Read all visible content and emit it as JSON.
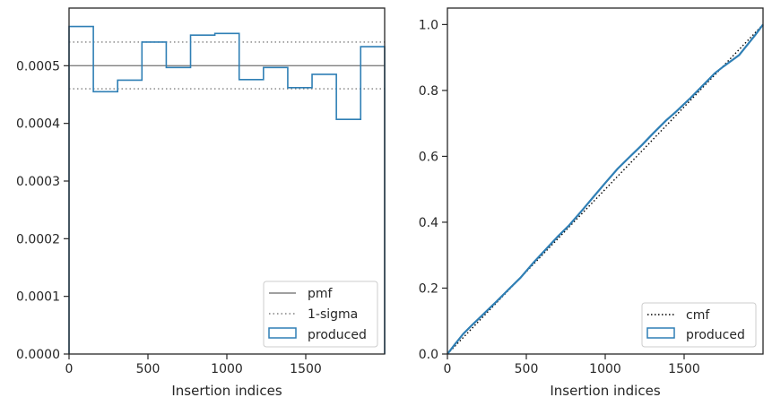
{
  "chart_data": [
    {
      "type": "step",
      "xlabel": "Insertion indices",
      "ylabel": "",
      "xlim": [
        0,
        2000
      ],
      "ylim": [
        0,
        0.0006
      ],
      "xticks": [
        0,
        500,
        1000,
        1500
      ],
      "xtick_labels": [
        "0",
        "500",
        "1000",
        "1500"
      ],
      "yticks": [
        0,
        0.0001,
        0.0002,
        0.0003,
        0.0004,
        0.0005
      ],
      "ytick_labels": [
        "0.0000",
        "0.0001",
        "0.0002",
        "0.0003",
        "0.0004",
        "0.0005"
      ],
      "grid": false,
      "legend_position": "bottom-right",
      "reference_lines": [
        {
          "name": "pmf",
          "y": 0.0005,
          "style": "solid",
          "color": "#808080"
        },
        {
          "name": "1-sigma",
          "y": 0.000541,
          "style": "dotted",
          "color": "#808080"
        },
        {
          "name": "1-sigma",
          "y": 0.00046,
          "style": "dotted",
          "color": "#808080"
        }
      ],
      "series": [
        {
          "name": "produced",
          "color": "#2f7fb5",
          "bin_edges": [
            0,
            154,
            308,
            462,
            616,
            770,
            924,
            1078,
            1232,
            1386,
            1540,
            1694,
            1848,
            2000
          ],
          "values": [
            0.000568,
            0.000455,
            0.000475,
            0.000541,
            0.000497,
            0.000553,
            0.000556,
            0.000476,
            0.000497,
            0.000462,
            0.000485,
            0.000407,
            0.000533
          ]
        }
      ],
      "legend": [
        {
          "label": "pmf",
          "kind": "solid-line"
        },
        {
          "label": "1-sigma",
          "kind": "dotted-line"
        },
        {
          "label": "produced",
          "kind": "box"
        }
      ]
    },
    {
      "type": "line",
      "xlabel": "Insertion indices",
      "ylabel": "",
      "xlim": [
        0,
        2000
      ],
      "ylim": [
        0,
        1.05
      ],
      "xticks": [
        0,
        500,
        1000,
        1500
      ],
      "xtick_labels": [
        "0",
        "500",
        "1000",
        "1500"
      ],
      "yticks": [
        0.0,
        0.2,
        0.4,
        0.6,
        0.8,
        1.0
      ],
      "ytick_labels": [
        "0.0",
        "0.2",
        "0.4",
        "0.6",
        "0.8",
        "1.0"
      ],
      "grid": false,
      "legend_position": "bottom-right",
      "series": [
        {
          "name": "cmf",
          "style": "dotted",
          "color": "#000000",
          "x": [
            0,
            2000
          ],
          "y": [
            0.0,
            1.0
          ]
        },
        {
          "name": "produced",
          "style": "solid",
          "color": "#2f7fb5",
          "x": [
            0,
            50,
            100,
            154,
            200,
            308,
            400,
            462,
            550,
            616,
            700,
            770,
            850,
            924,
            1000,
            1078,
            1150,
            1232,
            1300,
            1386,
            1450,
            1540,
            1600,
            1694,
            1750,
            1848,
            1950,
            2000
          ],
          "y": [
            0.0,
            0.031,
            0.061,
            0.087,
            0.108,
            0.158,
            0.202,
            0.231,
            0.28,
            0.314,
            0.357,
            0.39,
            0.434,
            0.476,
            0.519,
            0.562,
            0.596,
            0.634,
            0.668,
            0.709,
            0.736,
            0.777,
            0.806,
            0.852,
            0.873,
            0.907,
            0.968,
            1.0
          ]
        }
      ],
      "legend": [
        {
          "label": "cmf",
          "kind": "dotted-line"
        },
        {
          "label": "produced",
          "kind": "box"
        }
      ]
    }
  ]
}
